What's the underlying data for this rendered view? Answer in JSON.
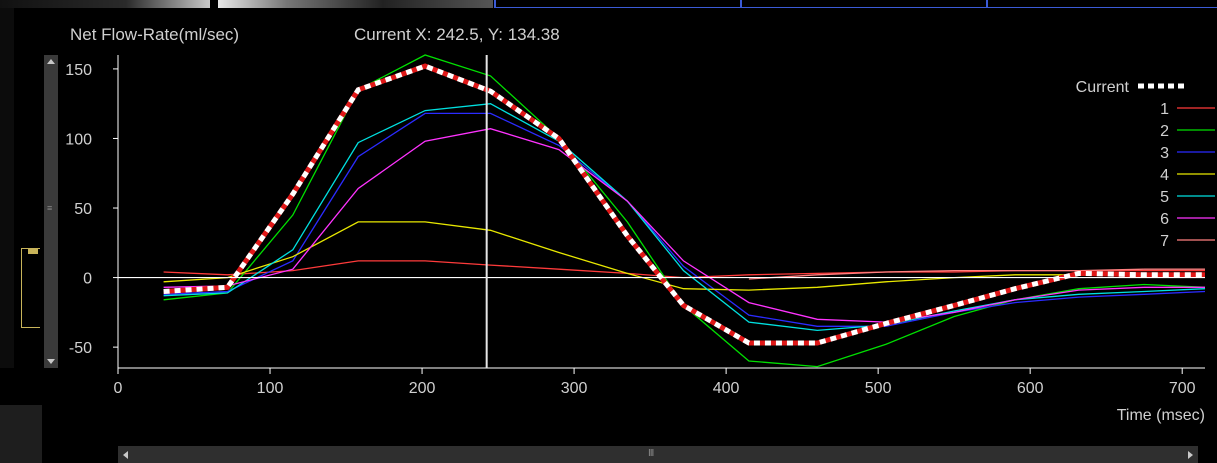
{
  "header": {
    "title": "Net Flow-Rate(ml/sec)",
    "cursor": "Current X: 242.5, Y: 134.38"
  },
  "colors": {
    "background": "#000000",
    "axis": "#ffffff",
    "tick_text": "#d0d0d0"
  },
  "chart_data": {
    "type": "line",
    "xlabel": "Time (msec)",
    "ylabel": "Net Flow-Rate(ml/sec)",
    "xlim": [
      0,
      715
    ],
    "ylim": [
      -65,
      160
    ],
    "xticks": [
      0,
      100,
      200,
      300,
      400,
      500,
      600,
      700
    ],
    "yticks": [
      -50,
      0,
      50,
      100,
      150
    ],
    "cursor_x": 242.5,
    "cursor_y": 134.38,
    "legend_position": "right",
    "series": [
      {
        "name": "Current",
        "color": "#ffffff",
        "dash": "red-white",
        "points": [
          [
            30,
            -10
          ],
          [
            72,
            -7
          ],
          [
            115,
            60
          ],
          [
            158,
            135
          ],
          [
            202,
            152
          ],
          [
            245,
            134
          ],
          [
            290,
            100
          ],
          [
            335,
            30
          ],
          [
            372,
            -20
          ],
          [
            415,
            -47
          ],
          [
            460,
            -47
          ],
          [
            505,
            -33
          ],
          [
            550,
            -20
          ],
          [
            590,
            -8
          ],
          [
            632,
            3
          ],
          [
            675,
            2
          ],
          [
            715,
            2
          ]
        ]
      },
      {
        "name": "1",
        "color": "#ff3b3b",
        "points": [
          [
            30,
            4
          ],
          [
            72,
            2
          ],
          [
            115,
            5
          ],
          [
            158,
            12
          ],
          [
            202,
            12
          ],
          [
            245,
            9
          ],
          [
            290,
            6
          ],
          [
            335,
            3
          ],
          [
            372,
            0
          ],
          [
            415,
            2
          ],
          [
            460,
            3
          ],
          [
            505,
            4
          ],
          [
            550,
            4
          ],
          [
            590,
            5
          ],
          [
            632,
            5
          ],
          [
            675,
            5
          ],
          [
            715,
            5
          ]
        ]
      },
      {
        "name": "2",
        "color": "#00e000",
        "points": [
          [
            30,
            -16
          ],
          [
            72,
            -11
          ],
          [
            115,
            45
          ],
          [
            158,
            135
          ],
          [
            202,
            160
          ],
          [
            245,
            145
          ],
          [
            290,
            100
          ],
          [
            335,
            40
          ],
          [
            372,
            -20
          ],
          [
            415,
            -60
          ],
          [
            460,
            -64
          ],
          [
            505,
            -48
          ],
          [
            550,
            -28
          ],
          [
            590,
            -16
          ],
          [
            632,
            -8
          ],
          [
            675,
            -5
          ],
          [
            715,
            -7
          ]
        ]
      },
      {
        "name": "3",
        "color": "#2b2bff",
        "points": [
          [
            30,
            -12
          ],
          [
            72,
            -10
          ],
          [
            115,
            12
          ],
          [
            158,
            87
          ],
          [
            202,
            118
          ],
          [
            245,
            118
          ],
          [
            290,
            95
          ],
          [
            335,
            55
          ],
          [
            372,
            8
          ],
          [
            415,
            -27
          ],
          [
            460,
            -35
          ],
          [
            505,
            -35
          ],
          [
            550,
            -25
          ],
          [
            590,
            -18
          ],
          [
            632,
            -14
          ],
          [
            675,
            -12
          ],
          [
            715,
            -10
          ]
        ]
      },
      {
        "name": "4",
        "color": "#e8e800",
        "points": [
          [
            30,
            -3
          ],
          [
            72,
            0
          ],
          [
            115,
            15
          ],
          [
            158,
            40
          ],
          [
            202,
            40
          ],
          [
            245,
            34
          ],
          [
            290,
            18
          ],
          [
            335,
            3
          ],
          [
            372,
            -8
          ],
          [
            415,
            -9
          ],
          [
            460,
            -7
          ],
          [
            505,
            -3
          ],
          [
            550,
            0
          ],
          [
            590,
            2
          ],
          [
            632,
            2
          ],
          [
            675,
            3
          ],
          [
            715,
            3
          ]
        ]
      },
      {
        "name": "5",
        "color": "#00e0e0",
        "points": [
          [
            30,
            -13
          ],
          [
            72,
            -11
          ],
          [
            115,
            20
          ],
          [
            158,
            97
          ],
          [
            202,
            120
          ],
          [
            245,
            125
          ],
          [
            290,
            98
          ],
          [
            335,
            55
          ],
          [
            372,
            5
          ],
          [
            415,
            -32
          ],
          [
            460,
            -38
          ],
          [
            505,
            -34
          ],
          [
            550,
            -24
          ],
          [
            590,
            -16
          ],
          [
            632,
            -12
          ],
          [
            675,
            -10
          ],
          [
            715,
            -8
          ]
        ]
      },
      {
        "name": "6",
        "color": "#ff33ff",
        "points": [
          [
            30,
            -7
          ],
          [
            72,
            -6
          ],
          [
            115,
            6
          ],
          [
            158,
            64
          ],
          [
            202,
            98
          ],
          [
            245,
            107
          ],
          [
            290,
            92
          ],
          [
            335,
            55
          ],
          [
            372,
            12
          ],
          [
            415,
            -18
          ],
          [
            460,
            -30
          ],
          [
            505,
            -32
          ],
          [
            550,
            -25
          ],
          [
            590,
            -16
          ],
          [
            632,
            -9
          ],
          [
            675,
            -7
          ],
          [
            715,
            -7
          ]
        ]
      },
      {
        "name": "7",
        "color": "#ff8080",
        "points": [
          [
            415,
            -1
          ],
          [
            460,
            2
          ],
          [
            505,
            4
          ],
          [
            550,
            5
          ],
          [
            590,
            5
          ],
          [
            632,
            5
          ],
          [
            675,
            6
          ],
          [
            715,
            6
          ]
        ]
      }
    ]
  },
  "scrollbars": {
    "horizontal_grip": "III",
    "vertical_grip": "≡"
  }
}
